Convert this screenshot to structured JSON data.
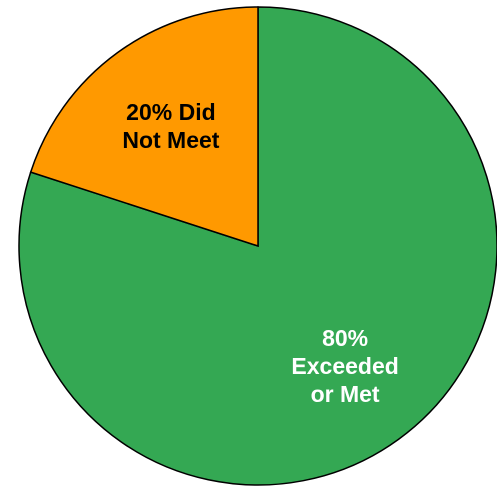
{
  "chart_data": {
    "type": "pie",
    "title": "",
    "start": "12 o'clock",
    "direction": "clockwise",
    "slices": [
      {
        "name": "Exceeded or Met",
        "value": 80,
        "color": "#34a853",
        "label_lines": [
          "80%",
          "Exceeded",
          "or Met"
        ],
        "label_color": "#ffffff"
      },
      {
        "name": "Did Not Meet",
        "value": 20,
        "color": "#ff9900",
        "label_lines": [
          "20% Did",
          "Not Meet"
        ],
        "label_color": "#000000"
      }
    ]
  }
}
